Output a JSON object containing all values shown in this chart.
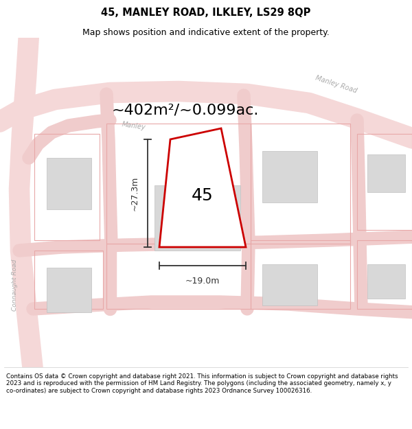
{
  "title": "45, MANLEY ROAD, ILKLEY, LS29 8QP",
  "subtitle": "Map shows position and indicative extent of the property.",
  "area_label": "~402m²/~0.099ac.",
  "property_number": "45",
  "dim_vertical": "~27.3m",
  "dim_horizontal": "~19.0m",
  "footer": "Contains OS data © Crown copyright and database right 2021. This information is subject to Crown copyright and database rights 2023 and is reproduced with the permission of HM Land Registry. The polygons (including the associated geometry, namely x, y co-ordinates) are subject to Crown copyright and database rights 2023 Ordnance Survey 100026316.",
  "bg_color": "#f7f7f5",
  "road_fill": "#f5d8d8",
  "road_edge": "#e8b8b8",
  "building_fill": "#d8d8d8",
  "building_edge": "#c0c0c0",
  "plot_edge": "#e8a0a0",
  "red_poly_edge": "#cc0000",
  "dim_color": "#333333",
  "label_color": "#aaaaaa",
  "figsize": [
    6.0,
    6.25
  ],
  "dpi": 100
}
